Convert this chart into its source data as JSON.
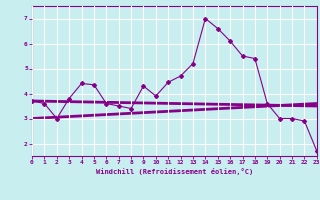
{
  "x": [
    0,
    1,
    2,
    3,
    4,
    5,
    6,
    7,
    8,
    9,
    10,
    11,
    12,
    13,
    14,
    15,
    16,
    17,
    18,
    19,
    20,
    21,
    22,
    23
  ],
  "line1": [
    3.7,
    3.6,
    3.0,
    3.8,
    4.4,
    4.35,
    3.6,
    3.5,
    3.4,
    4.3,
    3.9,
    4.45,
    4.7,
    5.2,
    7.0,
    6.6,
    6.1,
    5.5,
    5.4,
    3.6,
    3.0,
    3.0,
    2.9,
    1.7
  ],
  "line2_x": [
    0,
    23
  ],
  "line2_y": [
    3.7,
    3.5
  ],
  "line3_x": [
    0,
    23
  ],
  "line3_y": [
    3.0,
    3.6
  ],
  "color": "#880088",
  "bg_color": "#c8eef0",
  "grid_color": "#ffffff",
  "xlabel": "Windchill (Refroidissement éolien,°C)",
  "xlim": [
    0,
    23
  ],
  "ylim": [
    1.5,
    7.5
  ],
  "yticks": [
    2,
    3,
    4,
    5,
    6,
    7
  ],
  "xticks": [
    0,
    1,
    2,
    3,
    4,
    5,
    6,
    7,
    8,
    9,
    10,
    11,
    12,
    13,
    14,
    15,
    16,
    17,
    18,
    19,
    20,
    21,
    22,
    23
  ]
}
